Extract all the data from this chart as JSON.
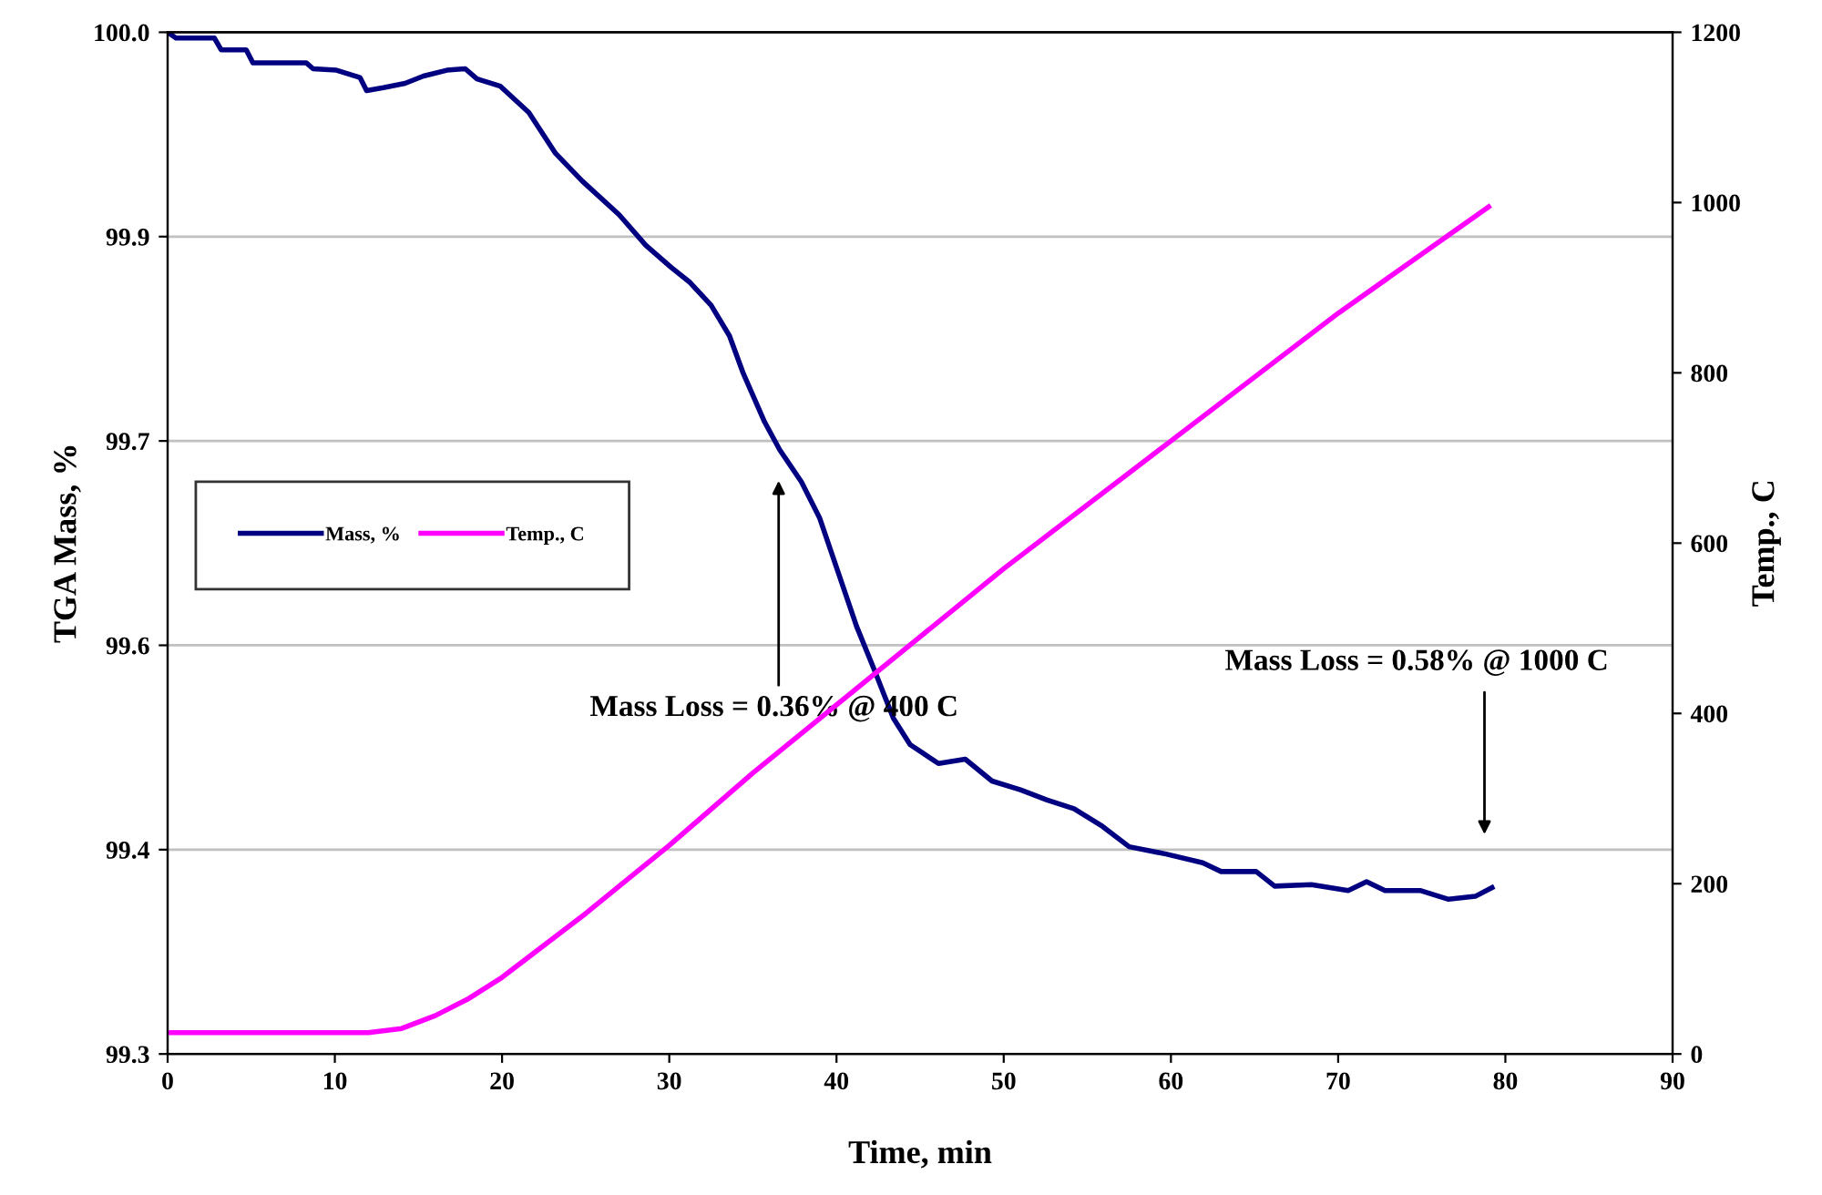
{
  "chart_data": {
    "type": "line",
    "xlabel": "Time, min",
    "ylabel": "TGA Mass, %",
    "y2label": "Temp., C",
    "xlim": [
      0,
      90
    ],
    "xticks": [
      0,
      10,
      20,
      30,
      40,
      50,
      60,
      70,
      80,
      90
    ],
    "ylim": [
      99.3,
      100.0
    ],
    "yticks": [
      {
        "value": 99.3,
        "label": "99.3"
      },
      {
        "value": 99.44,
        "label": "99.4"
      },
      {
        "value": 99.58,
        "label": "99.6"
      },
      {
        "value": 99.72,
        "label": "99.7"
      },
      {
        "value": 99.86,
        "label": "99.9"
      },
      {
        "value": 100.0,
        "label": "100.0"
      }
    ],
    "y2lim": [
      0,
      1200
    ],
    "y2ticks": [
      0,
      200,
      400,
      600,
      800,
      1000,
      1200
    ],
    "grid": "y",
    "legend": "left",
    "marker": "none",
    "line_style": "solid",
    "series": [
      {
        "name": "Mass, %",
        "color": "#000080",
        "x": [
          0,
          0.5,
          2.8,
          3.2,
          4.7,
          5.1,
          8.3,
          8.7,
          10.1,
          11.5,
          11.9,
          12.9,
          14.2,
          15.3,
          16.7,
          17.8,
          18.5,
          19.9,
          21.6,
          23.2,
          24.8,
          27.0,
          28.6,
          30.1,
          31.2,
          32.5,
          33.6,
          34.4,
          35.7,
          36.6,
          37.9,
          39.0,
          40.1,
          41.2,
          42.3,
          43.4,
          44.4,
          46.1,
          47.7,
          49.3,
          51.0,
          52.6,
          54.2,
          55.9,
          57.5,
          59.7,
          61.9,
          63.0,
          65.1,
          66.2,
          68.4,
          70.6,
          71.7,
          72.8,
          74.9,
          76.6,
          78.2,
          79.2
        ],
        "values": [
          100.0,
          99.996,
          99.996,
          99.988,
          99.988,
          99.979,
          99.979,
          99.975,
          99.974,
          99.969,
          99.96,
          99.962,
          99.965,
          99.97,
          99.974,
          99.975,
          99.968,
          99.963,
          99.945,
          99.917,
          99.898,
          99.875,
          99.854,
          99.839,
          99.829,
          99.813,
          99.792,
          99.767,
          99.733,
          99.714,
          99.692,
          99.667,
          99.63,
          99.593,
          99.562,
          99.53,
          99.512,
          99.499,
          99.502,
          99.487,
          99.481,
          99.474,
          99.468,
          99.456,
          99.442,
          99.437,
          99.431,
          99.425,
          99.425,
          99.415,
          99.416,
          99.412,
          99.418,
          99.412,
          99.412,
          99.406,
          99.408,
          99.414
        ]
      },
      {
        "name": "Temp., C",
        "color": "#ff00ff",
        "axis": "y2",
        "x": [
          0,
          12,
          14,
          16,
          18,
          20,
          22,
          25,
          30,
          35,
          40,
          45,
          50,
          60,
          70,
          79
        ],
        "values": [
          25,
          25,
          30,
          45,
          65,
          90,
          120,
          165,
          245,
          330,
          410,
          490,
          570,
          720,
          870,
          995
        ]
      }
    ],
    "annotations": [
      "Mass Loss = 0.36% @ 400 C",
      "Mass Loss = 0.58% @ 1000 C"
    ]
  }
}
